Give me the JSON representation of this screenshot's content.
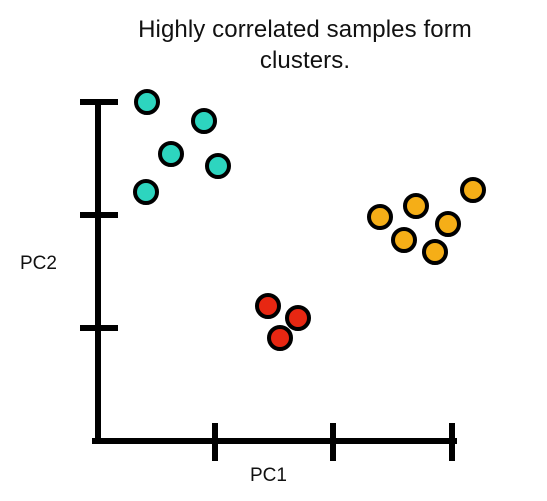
{
  "title_line1": "Highly correlated samples form",
  "title_line2": "clusters.",
  "y_axis_label": "PC2",
  "x_axis_label": "PC1",
  "colors": {
    "axis": "#000000",
    "cluster_teal": "#2dd5bf",
    "cluster_red": "#e72712",
    "cluster_orange": "#f5ae17"
  },
  "clusters": [
    {
      "name": "teal",
      "color_key": "cluster_teal",
      "points": [
        [
          147,
          102
        ],
        [
          204,
          121
        ],
        [
          171,
          154
        ],
        [
          218,
          166
        ],
        [
          146,
          192
        ]
      ]
    },
    {
      "name": "red",
      "color_key": "cluster_red",
      "points": [
        [
          268,
          306
        ],
        [
          298,
          318
        ],
        [
          280,
          338
        ]
      ]
    },
    {
      "name": "orange",
      "color_key": "cluster_orange",
      "points": [
        [
          473,
          190
        ],
        [
          416,
          206
        ],
        [
          380,
          217
        ],
        [
          448,
          224
        ],
        [
          404,
          240
        ],
        [
          435,
          252
        ]
      ]
    }
  ]
}
